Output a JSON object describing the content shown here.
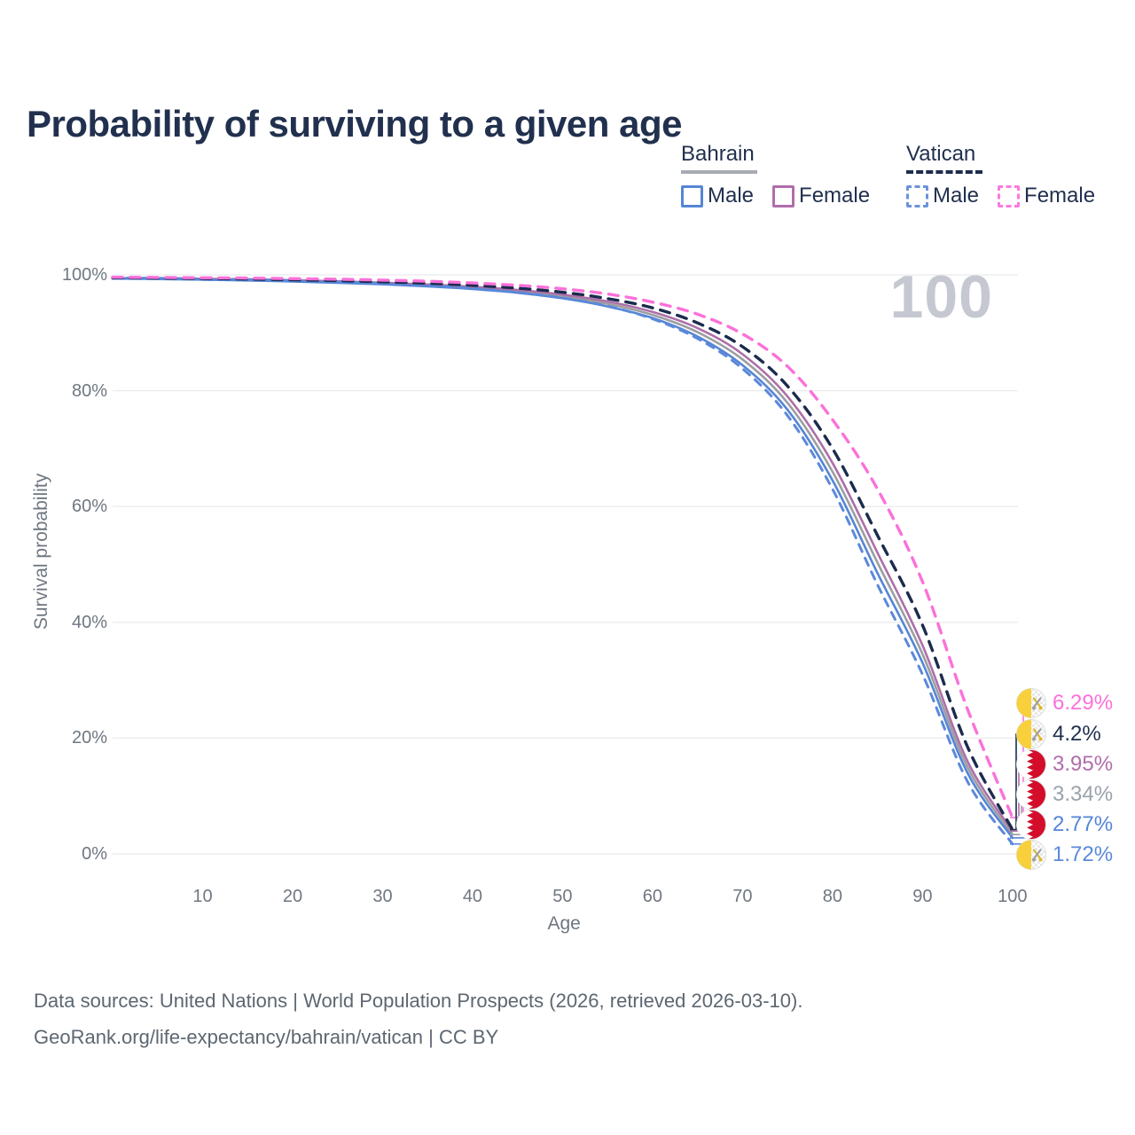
{
  "title": "Probability of surviving to a given age",
  "watermark": "100",
  "legend": {
    "groups": [
      {
        "name": "Bahrain",
        "line_style": "solid",
        "underline_color": "#a7abb2",
        "items": [
          {
            "label": "Male",
            "color": "#5585d6",
            "dashed": false
          },
          {
            "label": "Female",
            "color": "#b06dab",
            "dashed": false
          }
        ]
      },
      {
        "name": "Vatican",
        "line_style": "dashed",
        "underline_color": "#1e2c4e",
        "items": [
          {
            "label": "Male",
            "color": "#6a93dc",
            "dashed": true
          },
          {
            "label": "Female",
            "color": "#fb79dd",
            "dashed": true
          }
        ]
      }
    ]
  },
  "axes": {
    "x": {
      "label": "Age",
      "ticks": [
        10,
        20,
        30,
        40,
        50,
        60,
        70,
        80,
        90,
        100
      ],
      "range": [
        0,
        100
      ]
    },
    "y": {
      "label": "Survival probability",
      "ticks": [
        "0%",
        "20%",
        "40%",
        "60%",
        "80%",
        "100%"
      ],
      "tick_values": [
        0,
        20,
        40,
        60,
        80,
        100
      ],
      "range": [
        0,
        100
      ],
      "grid": true
    }
  },
  "chart_data": {
    "type": "line",
    "title": "Probability of surviving to a given age",
    "xlabel": "Age",
    "ylabel": "Survival probability",
    "xlim": [
      0,
      100
    ],
    "ylim": [
      0,
      100
    ],
    "x_ages": [
      0,
      5,
      10,
      15,
      20,
      25,
      30,
      35,
      40,
      45,
      50,
      55,
      60,
      65,
      70,
      75,
      80,
      85,
      90,
      95,
      100
    ],
    "series": [
      {
        "name": "Vatican Female",
        "country": "Vatican",
        "sex": "Female",
        "color": "#fb71da",
        "dash": [
          11,
          9
        ],
        "width": 3.4,
        "flag": "vatican",
        "end_label": "6.29%",
        "label_color": "#fb71da",
        "values": [
          99.6,
          99.55,
          99.5,
          99.45,
          99.35,
          99.25,
          99.1,
          98.9,
          98.6,
          98.2,
          97.6,
          96.7,
          95.3,
          93.2,
          89.8,
          84.2,
          75.0,
          63.0,
          47.0,
          25.0,
          6.29
        ]
      },
      {
        "name": "Vatican Both sexes",
        "country": "Vatican",
        "sex": "Both",
        "color": "#1b2b4d",
        "dash": [
          11,
          9
        ],
        "width": 3.4,
        "flag": "vatican",
        "end_label": "4.2%",
        "label_color": "#22304c",
        "values": [
          99.5,
          99.45,
          99.38,
          99.28,
          99.15,
          99.0,
          98.8,
          98.55,
          98.2,
          97.7,
          97.0,
          95.9,
          94.3,
          91.7,
          87.6,
          80.8,
          70.0,
          55.0,
          39.5,
          18.5,
          4.2
        ]
      },
      {
        "name": "Bahrain Female",
        "country": "Bahrain",
        "sex": "Female",
        "color": "#ad6fa8",
        "dash": null,
        "width": 2.6,
        "flag": "bahrain",
        "end_label": "3.95%",
        "label_color": "#b06dab",
        "values": [
          99.45,
          99.4,
          99.32,
          99.22,
          99.08,
          98.9,
          98.65,
          98.35,
          97.95,
          97.4,
          96.6,
          95.4,
          93.6,
          90.8,
          86.3,
          79.0,
          67.5,
          52.0,
          36.0,
          16.0,
          3.95
        ]
      },
      {
        "name": "Bahrain Both sexes",
        "country": "Bahrain",
        "sex": "Both",
        "color": "#9c9ea1",
        "dash": null,
        "width": 2.6,
        "flag": "bahrain",
        "end_label": "3.34%",
        "label_color": "#9aa2ac",
        "values": [
          99.4,
          99.34,
          99.25,
          99.12,
          98.97,
          98.77,
          98.52,
          98.2,
          97.77,
          97.17,
          96.3,
          95.0,
          93.1,
          90.1,
          85.4,
          77.9,
          66.0,
          50.3,
          34.5,
          15.0,
          3.34
        ]
      },
      {
        "name": "Bahrain Male",
        "country": "Bahrain",
        "sex": "Male",
        "color": "#5585d6",
        "dash": null,
        "width": 2.6,
        "flag": "bahrain",
        "end_label": "2.77%",
        "label_color": "#5585d6",
        "values": [
          99.35,
          99.28,
          99.18,
          99.04,
          98.87,
          98.64,
          98.37,
          98.02,
          97.55,
          96.9,
          95.95,
          94.55,
          92.55,
          89.35,
          84.4,
          76.7,
          64.5,
          48.5,
          33.0,
          14.0,
          2.77
        ]
      },
      {
        "name": "Vatican Male",
        "country": "Vatican",
        "sex": "Male",
        "color": "#5b89da",
        "dash": [
          9,
          8
        ],
        "width": 3.0,
        "flag": "vatican",
        "end_label": "1.72%",
        "label_color": "#5b89da",
        "values": [
          99.5,
          99.42,
          99.32,
          99.2,
          99.03,
          98.82,
          98.52,
          98.17,
          97.67,
          96.97,
          96.0,
          94.6,
          92.4,
          89.0,
          83.8,
          75.7,
          63.0,
          46.5,
          31.0,
          12.5,
          1.72
        ]
      }
    ],
    "legend_position": "top-right",
    "grid": "horizontal-only",
    "colors": {
      "grid": "#ebebed",
      "axis_text": "#6f7780",
      "title_text": "#21304e",
      "watermark": "#c5c8d1",
      "bahrain_red": "#d40d2b",
      "vatican_yellow": "#f8d03c"
    }
  },
  "footer": {
    "line1": "Data sources: United Nations | World Population Prospects (2026, retrieved 2026-03-10).",
    "line2": "GeoRank.org/life-expectancy/bahrain/vatican | CC BY"
  }
}
